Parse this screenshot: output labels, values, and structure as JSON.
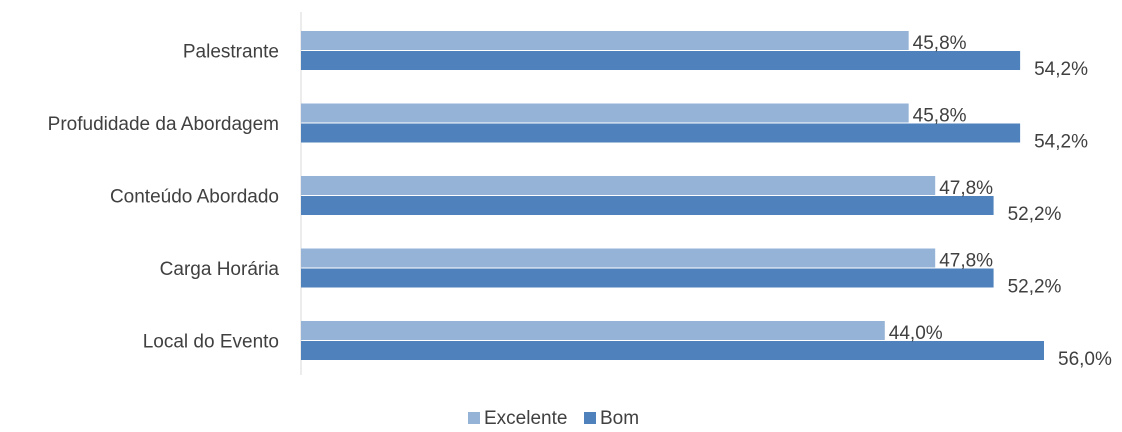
{
  "chart_data": {
    "type": "bar",
    "orientation": "horizontal",
    "categories": [
      "Palestrante",
      "Profudidade da Abordagem",
      "Conteúdo Abordado",
      "Carga Horária",
      "Local do Evento"
    ],
    "series": [
      {
        "name": "Excelente",
        "color": "#95b3d7",
        "values": [
          45.8,
          45.8,
          47.8,
          47.8,
          44.0
        ],
        "labels": [
          "45,8%",
          "45,8%",
          "47,8%",
          "47,8%",
          "44,0%"
        ]
      },
      {
        "name": "Bom",
        "color": "#4f81bd",
        "values": [
          54.2,
          54.2,
          52.2,
          52.2,
          56.0
        ],
        "labels": [
          "54,2%",
          "54,2%",
          "52,2%",
          "52,2%",
          "56,0%"
        ]
      }
    ],
    "xlim": [
      0,
      100
    ],
    "grid": false,
    "legend_position": "bottom"
  }
}
